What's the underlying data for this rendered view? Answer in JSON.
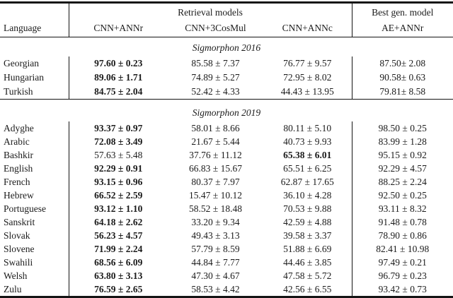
{
  "page": {
    "background": "#ffffff",
    "text_color": "#1b1b1b",
    "rule_color": "#141414"
  },
  "table": {
    "header": {
      "language": "Language",
      "retrieval_group": "Retrieval models",
      "best_gen_group": "Best gen. model",
      "retrieval_columns": [
        "CNN+ANNr",
        "CNN+3CosMul",
        "CNN+ANNc"
      ],
      "best_gen_column": "AE+ANNr"
    },
    "sections": [
      {
        "title": "Sigmorphon 2016",
        "rows": [
          {
            "language": "Georgian",
            "cells": [
              {
                "text": "97.60 ± 0.23",
                "bold": true
              },
              {
                "text": "85.58 ± 7.37",
                "bold": false
              },
              {
                "text": "76.77 ± 9.57",
                "bold": false
              },
              {
                "text": "87.50± 2.08",
                "bold": false
              }
            ]
          },
          {
            "language": "Hungarian",
            "cells": [
              {
                "text": "89.06 ± 1.71",
                "bold": true
              },
              {
                "text": "74.89 ± 5.27",
                "bold": false
              },
              {
                "text": "72.95 ± 8.02",
                "bold": false
              },
              {
                "text": "90.58± 0.63",
                "bold": false
              }
            ]
          },
          {
            "language": "Turkish",
            "cells": [
              {
                "text": "84.75 ± 2.04",
                "bold": true
              },
              {
                "text": "52.42 ± 4.33",
                "bold": false
              },
              {
                "text": "44.43 ± 13.95",
                "bold": false
              },
              {
                "text": "79.81± 8.58",
                "bold": false
              }
            ]
          }
        ]
      },
      {
        "title": "Sigmorphon 2019",
        "rows": [
          {
            "language": "Adyghe",
            "cells": [
              {
                "text": "93.37 ± 0.97",
                "bold": true
              },
              {
                "text": "58.01 ± 8.66",
                "bold": false
              },
              {
                "text": "80.11 ± 5.10",
                "bold": false
              },
              {
                "text": "98.50 ± 0.25",
                "bold": false
              }
            ]
          },
          {
            "language": "Arabic",
            "cells": [
              {
                "text": "72.08 ± 3.49",
                "bold": true
              },
              {
                "text": "21.67 ± 5.44",
                "bold": false
              },
              {
                "text": "40.73 ± 9.93",
                "bold": false
              },
              {
                "text": "83.99 ± 1.28",
                "bold": false
              }
            ]
          },
          {
            "language": "Bashkir",
            "cells": [
              {
                "text": "57.63 ± 5.48",
                "bold": false
              },
              {
                "text": "37.76 ± 11.12",
                "bold": false
              },
              {
                "text": "65.38 ± 6.01",
                "bold": true
              },
              {
                "text": "95.15 ± 0.92",
                "bold": false
              }
            ]
          },
          {
            "language": "English",
            "cells": [
              {
                "text": "92.29 ± 0.91",
                "bold": true
              },
              {
                "text": "66.83 ± 15.67",
                "bold": false
              },
              {
                "text": "65.51 ± 6.25",
                "bold": false
              },
              {
                "text": "92.29 ± 4.57",
                "bold": false
              }
            ]
          },
          {
            "language": "French",
            "cells": [
              {
                "text": "93.15 ± 0.96",
                "bold": true
              },
              {
                "text": "80.37 ± 7.97",
                "bold": false
              },
              {
                "text": "62.87 ± 17.65",
                "bold": false
              },
              {
                "text": "88.25 ± 2.24",
                "bold": false
              }
            ]
          },
          {
            "language": "Hebrew",
            "cells": [
              {
                "text": "66.52 ± 2.59",
                "bold": true
              },
              {
                "text": "15.47 ± 10.12",
                "bold": false
              },
              {
                "text": "36.10 ± 4.28",
                "bold": false
              },
              {
                "text": "92.50 ± 0.25",
                "bold": false
              }
            ]
          },
          {
            "language": "Portuguese",
            "cells": [
              {
                "text": "93.12 ± 1.10",
                "bold": true
              },
              {
                "text": "58.52 ± 18.48",
                "bold": false
              },
              {
                "text": "70.53 ± 9.88",
                "bold": false
              },
              {
                "text": "93.11 ± 8.32",
                "bold": false
              }
            ]
          },
          {
            "language": "Sanskrit",
            "cells": [
              {
                "text": "64.18 ± 2.62",
                "bold": true
              },
              {
                "text": "33.20 ± 9.34",
                "bold": false
              },
              {
                "text": "42.59 ± 4.88",
                "bold": false
              },
              {
                "text": "91.48 ± 0.78",
                "bold": false
              }
            ]
          },
          {
            "language": "Slovak",
            "cells": [
              {
                "text": "56.23 ± 4.57",
                "bold": true
              },
              {
                "text": "49.43 ± 3.13",
                "bold": false
              },
              {
                "text": "39.58 ± 3.37",
                "bold": false
              },
              {
                "text": "78.90 ± 0.86",
                "bold": false
              }
            ]
          },
          {
            "language": "Slovene",
            "cells": [
              {
                "text": "71.99 ± 2.24",
                "bold": true
              },
              {
                "text": "57.79 ± 8.59",
                "bold": false
              },
              {
                "text": "51.88 ± 6.69",
                "bold": false
              },
              {
                "text": "82.41 ± 10.98",
                "bold": false
              }
            ]
          },
          {
            "language": "Swahili",
            "cells": [
              {
                "text": "68.56 ± 6.09",
                "bold": true
              },
              {
                "text": "44.84 ± 7.77",
                "bold": false
              },
              {
                "text": "44.46 ± 3.85",
                "bold": false
              },
              {
                "text": "97.49 ± 0.21",
                "bold": false
              }
            ]
          },
          {
            "language": "Welsh",
            "cells": [
              {
                "text": "63.80 ± 3.13",
                "bold": true
              },
              {
                "text": "47.30 ± 4.67",
                "bold": false
              },
              {
                "text": "47.58 ± 5.72",
                "bold": false
              },
              {
                "text": "96.79 ± 0.23",
                "bold": false
              }
            ]
          },
          {
            "language": "Zulu",
            "cells": [
              {
                "text": "76.59 ± 2.65",
                "bold": true
              },
              {
                "text": "58.53 ± 4.42",
                "bold": false
              },
              {
                "text": "42.56 ± 6.55",
                "bold": false
              },
              {
                "text": "93.42 ± 0.73",
                "bold": false
              }
            ]
          }
        ]
      }
    ]
  }
}
